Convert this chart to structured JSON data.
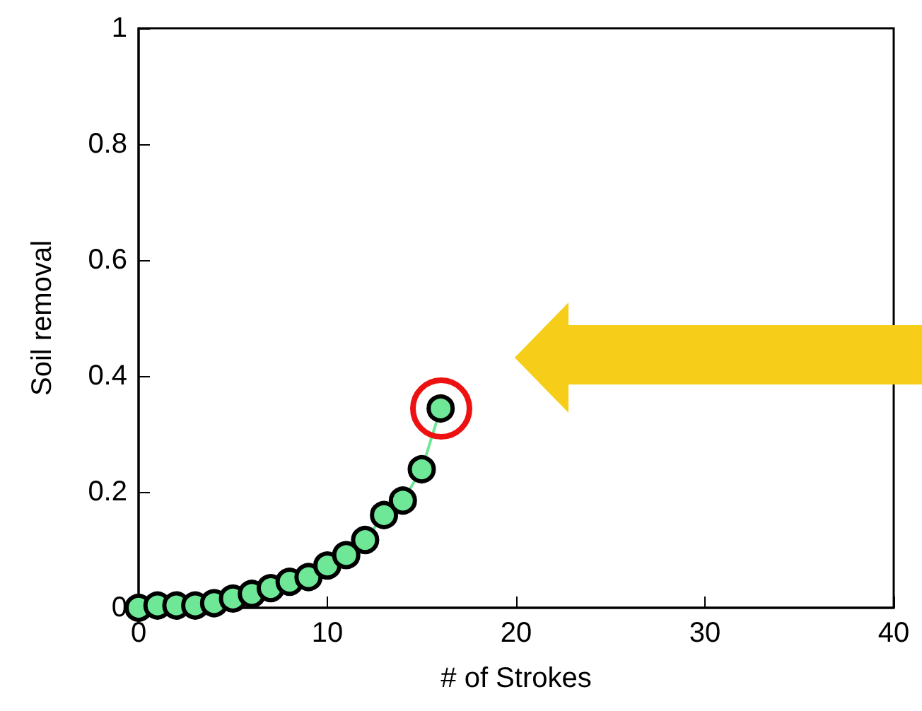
{
  "chart_data": {
    "type": "line",
    "xlabel": "# of Strokes",
    "ylabel": "Soil removal",
    "x": [
      0,
      1,
      2,
      3,
      4,
      5,
      6,
      7,
      8,
      9,
      10,
      11,
      12,
      13,
      14,
      15,
      16
    ],
    "series": [
      {
        "color": "#6ee896",
        "values": [
          0,
          0.004,
          0.004,
          0.004,
          0.008,
          0.016,
          0.024,
          0.034,
          0.045,
          0.053,
          0.073,
          0.091,
          0.117,
          0.16,
          0.185,
          0.239,
          0.344
        ]
      }
    ],
    "xlim": [
      0,
      40
    ],
    "xticks": [
      0,
      10,
      20,
      30,
      40
    ],
    "ylim": [
      0,
      1
    ],
    "yticks": [
      0,
      0.2,
      0.4,
      0.6,
      0.8,
      1
    ],
    "grid": false,
    "marker": "circle",
    "line_style": "solid"
  }
}
